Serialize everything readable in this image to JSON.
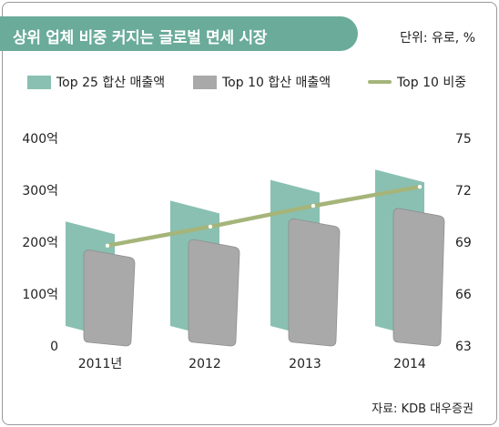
{
  "header": {
    "title": "상위 업체 비중 커지는 글로벌 면세 시장",
    "unit": "단위: 유로, %"
  },
  "source": "자료: KDB 대우증권",
  "colors": {
    "title_band": "#6aab99",
    "top25_front": "#89c0b2",
    "top25_back": "#6fa99a",
    "top10_front": "#a9a9a9",
    "top10_back": "#8e8e8e",
    "share_line": "#a5b57a"
  },
  "chart_data": {
    "type": "bar",
    "categories": [
      "2011년",
      "2012",
      "2013",
      "2014"
    ],
    "series": [
      {
        "name": "Top 25 합산 매출액",
        "kind": "bar",
        "axis": "left",
        "values": [
          240,
          280,
          320,
          340
        ]
      },
      {
        "name": "Top 10 합산 매출액",
        "kind": "bar",
        "axis": "left",
        "values": [
          185,
          205,
          245,
          265
        ]
      },
      {
        "name": "Top 10 비중",
        "kind": "line",
        "axis": "right",
        "values": [
          68.8,
          69.9,
          71.1,
          72.2
        ]
      }
    ],
    "y_left": {
      "ticks": [
        "0",
        "100억",
        "200억",
        "300억",
        "400억"
      ],
      "range": [
        0,
        400
      ]
    },
    "y_right": {
      "ticks": [
        "63",
        "66",
        "69",
        "72",
        "75"
      ],
      "range": [
        63,
        75
      ]
    },
    "legend_position": "top",
    "grid": false
  }
}
